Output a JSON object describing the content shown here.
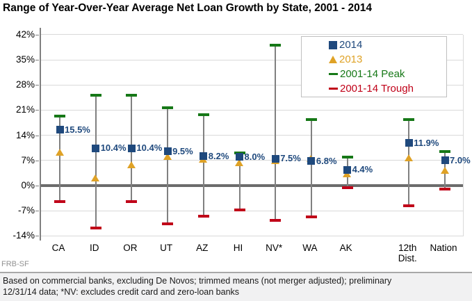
{
  "title": "Range of Year-Over-Year Average Net Loan Growth by State, 2001 - 2014",
  "source": "FRB-SF",
  "footnote": {
    "line1": "Based on commercial banks, excluding De Novos; trimmed means (not merger adjusted); preliminary",
    "line2": "12/31/14 data; *NV: excludes credit card and zero-loan banks"
  },
  "colors": {
    "navy": "#1F497D",
    "gold": "#DFA226",
    "green": "#167817",
    "red": "#C00018",
    "gridline": "#D9D9D9",
    "zero_line": "#6B6B6B",
    "axis": "#808080",
    "range_line": "#808080",
    "legend_border": "#BFBFBF",
    "footnote_bg": "#F1F1F2"
  },
  "legend": {
    "position": "top-right-inside",
    "items": [
      {
        "label": "2014",
        "marker": "square",
        "color": "#1F497D"
      },
      {
        "label": "2013",
        "marker": "triangle",
        "color": "#DFA226"
      },
      {
        "label": "2001-14 Peak",
        "marker": "dash",
        "color": "#167817"
      },
      {
        "label": "2001-14 Trough",
        "marker": "dash",
        "color": "#C00018"
      }
    ]
  },
  "chart_data": {
    "type": "scatter",
    "subtype": "range-high-low-with-point-markers",
    "title": "Range of Year-Over-Year Average Net Loan Growth by State, 2001 - 2014",
    "xlabel": "",
    "ylabel": "",
    "grid": true,
    "ylim": [
      -14,
      42
    ],
    "ytick_step": 7,
    "ytick_values": [
      42,
      35,
      28,
      21,
      14,
      7,
      0,
      -7,
      -14
    ],
    "ytick_labels": [
      "42%",
      "35%",
      "28%",
      "21%",
      "14%",
      "7%",
      "0%",
      "-7%",
      "-14%"
    ],
    "categories": [
      "CA",
      "ID",
      "OR",
      "UT",
      "AZ",
      "HI",
      "NV*",
      "WA",
      "AK",
      "12th Dist.",
      "Nation"
    ],
    "series": [
      {
        "name": "2014",
        "marker": "square",
        "color": "#1F497D",
        "values": [
          15.5,
          10.4,
          10.4,
          9.5,
          8.2,
          8.0,
          7.5,
          6.8,
          4.4,
          11.9,
          7.0
        ],
        "data_labels": [
          "15.5%",
          "10.4%",
          "10.4%",
          "9.5%",
          "8.2%",
          "8.0%",
          "7.5%",
          "6.8%",
          "4.4%",
          "11.9%",
          "7.0%"
        ]
      },
      {
        "name": "2013",
        "marker": "triangle",
        "color": "#DFA226",
        "values": [
          9.3,
          2.1,
          5.8,
          8.2,
          7.3,
          6.3,
          6.9,
          7.5,
          3.3,
          7.8,
          4.3
        ]
      },
      {
        "name": "2001-14 Peak",
        "marker": "dash",
        "color": "#167817",
        "values": [
          19.4,
          25.2,
          25.2,
          21.7,
          19.7,
          9.1,
          39.1,
          18.4,
          7.9,
          18.4,
          9.5
        ]
      },
      {
        "name": "2001-14 Trough",
        "marker": "dash",
        "color": "#C00018",
        "values": [
          -4.5,
          -11.8,
          -4.5,
          -10.6,
          -8.5,
          -6.8,
          -9.7,
          -8.7,
          -0.5,
          -5.6,
          -1.0
        ]
      }
    ]
  }
}
